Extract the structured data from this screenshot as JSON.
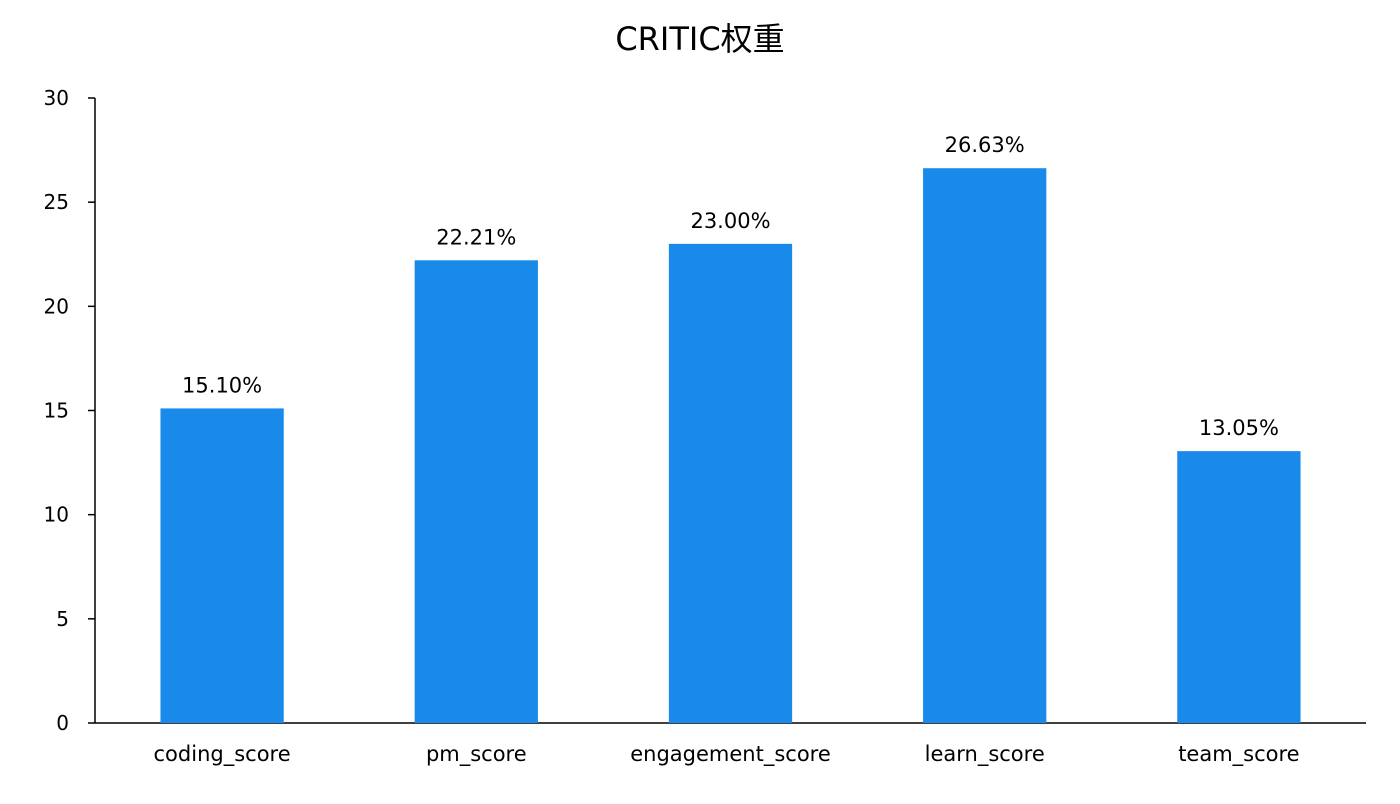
{
  "chart_data": {
    "type": "bar",
    "title": "CRITIC权重",
    "xlabel": "",
    "ylabel": "",
    "categories": [
      "coding_score",
      "pm_score",
      "engagement_score",
      "learn_score",
      "team_score"
    ],
    "values": [
      15.1,
      22.21,
      23.0,
      26.63,
      13.05
    ],
    "data_labels": [
      "15.10%",
      "22.21%",
      "23.00%",
      "26.63%",
      "13.05%"
    ],
    "ylim": [
      0,
      30
    ],
    "yticks": [
      0,
      5,
      10,
      15,
      20,
      25,
      30
    ],
    "grid": false,
    "legend": "none",
    "bar_color": "#1a8aea",
    "axis_color": "#000000"
  }
}
